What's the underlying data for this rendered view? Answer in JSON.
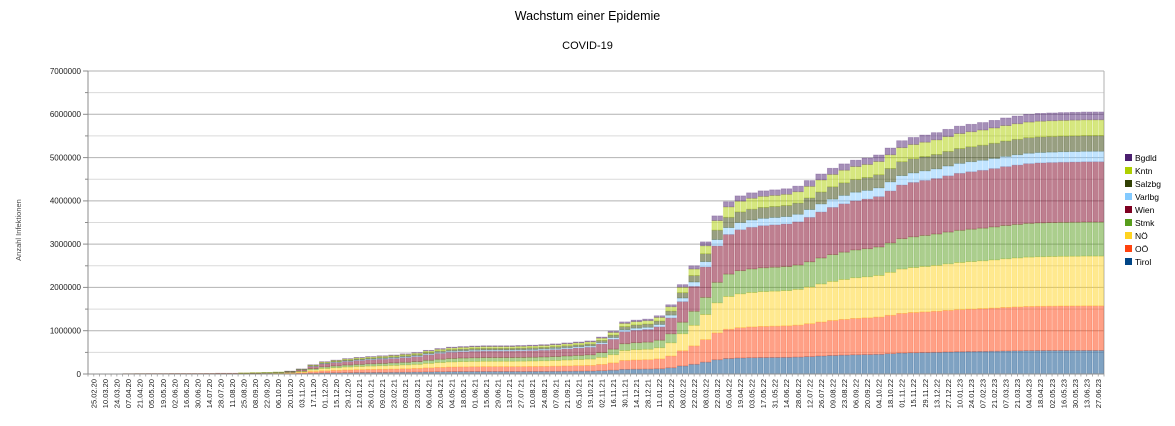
{
  "page": {
    "background_color": "#ffffff"
  },
  "header": {
    "title": "Wachstum einer Epidemie",
    "subtitle": "COVID-19"
  },
  "y_axis": {
    "title": "Anzahl Infektionen",
    "tick_labels": [
      "0",
      "1000000",
      "2000000",
      "3000000",
      "4000000",
      "5000000",
      "6000000",
      "7000000"
    ]
  },
  "chart_data": {
    "type": "bar",
    "stacked": true,
    "title": "Wachstum einer Epidemie",
    "subtitle": "COVID-19",
    "xlabel": "",
    "ylabel": "Anzahl Infektionen",
    "ylim": [
      0,
      7000000
    ],
    "y_major_step": 1000000,
    "y_minor_step": 500000,
    "grid": true,
    "legend_position": "right",
    "bar_fill_opacity": 0.5,
    "stack_order": "bottom-to-top",
    "legend_order_top_to_bottom": [
      "Bgdld",
      "Kntn",
      "Salzbg",
      "Varlbg",
      "Wien",
      "Stmk",
      "NÖ",
      "OÖ",
      "Tirol"
    ],
    "categories": [
      "25.02.20",
      "10.03.20",
      "24.03.20",
      "07.04.20",
      "21.04.20",
      "05.05.20",
      "19.05.20",
      "02.06.20",
      "16.06.20",
      "30.06.20",
      "14.07.20",
      "28.07.20",
      "11.08.20",
      "25.08.20",
      "08.09.20",
      "22.09.20",
      "06.10.20",
      "20.10.20",
      "03.11.20",
      "17.11.20",
      "01.12.20",
      "15.12.20",
      "29.12.20",
      "12.01.21",
      "26.01.21",
      "09.02.21",
      "23.02.21",
      "09.03.21",
      "23.03.21",
      "06.04.21",
      "20.04.21",
      "04.05.21",
      "18.05.21",
      "01.06.21",
      "15.06.21",
      "29.06.21",
      "13.07.21",
      "27.07.21",
      "10.08.21",
      "24.08.21",
      "07.09.21",
      "21.09.21",
      "05.10.21",
      "19.10.21",
      "02.11.21",
      "16.11.21",
      "30.11.21",
      "14.12.21",
      "28.12.21",
      "11.01.22",
      "25.01.22",
      "08.02.22",
      "22.02.22",
      "08.03.22",
      "22.03.22",
      "05.04.22",
      "19.04.22",
      "03.05.22",
      "17.05.22",
      "31.05.22",
      "14.06.22",
      "28.06.22",
      "12.07.22",
      "26.07.22",
      "09.08.22",
      "23.08.22",
      "06.09.22",
      "20.09.22",
      "04.10.22",
      "18.10.22",
      "01.11.22",
      "15.11.22",
      "29.11.22",
      "13.12.22",
      "27.12.22",
      "10.01.23",
      "24.01.23",
      "07.02.23",
      "21.02.23",
      "07.03.23",
      "21.03.23",
      "04.04.23",
      "18.04.23",
      "02.05.23",
      "16.05.23",
      "30.05.23",
      "13.06.23",
      "27.06.23"
    ],
    "series": [
      {
        "name": "Tirol",
        "color": "#004586",
        "values": [
          0,
          0,
          0,
          1000,
          1000,
          1000,
          1000,
          2000,
          2000,
          2000,
          2000,
          2000,
          2000,
          2000,
          3000,
          3000,
          4000,
          6000,
          11000,
          19000,
          26000,
          29000,
          32000,
          35000,
          36000,
          38000,
          40000,
          42000,
          45000,
          49000,
          53000,
          56000,
          57000,
          58000,
          59000,
          59000,
          59000,
          59000,
          60000,
          61000,
          63000,
          65000,
          67000,
          69000,
          77000,
          89000,
          108000,
          112000,
          114000,
          121000,
          144000,
          186000,
          225000,
          275000,
          329000,
          358000,
          370000,
          377000,
          381000,
          383000,
          385000,
          391000,
          402000,
          416000,
          428000,
          437000,
          445000,
          449000,
          455000,
          470000,
          485000,
          492000,
          497000,
          502000,
          509000,
          515000,
          519000,
          523000,
          527000,
          532000,
          536000,
          540000,
          542000,
          543000,
          544000,
          544000,
          545000,
          545000
        ]
      },
      {
        "name": "OÖ",
        "color": "#FF420E",
        "values": [
          0,
          0,
          1000,
          2000,
          3000,
          3000,
          3000,
          3000,
          3000,
          3000,
          3000,
          4000,
          4000,
          4000,
          5000,
          6000,
          8000,
          11000,
          20000,
          36000,
          48000,
          55000,
          61000,
          65000,
          69000,
          72000,
          75000,
          79000,
          84000,
          93000,
          100000,
          105000,
          108000,
          110000,
          111000,
          111000,
          111000,
          112000,
          113000,
          115000,
          118000,
          122000,
          126000,
          130000,
          145000,
          168000,
          205000,
          212000,
          216000,
          229000,
          272000,
          351000,
          425000,
          519000,
          621000,
          677000,
          700000,
          711000,
          719000,
          723000,
          728000,
          738000,
          760000,
          785000,
          808000,
          825000,
          840000,
          848000,
          860000,
          887000,
          916000,
          929000,
          938000,
          948000,
          961000,
          973000,
          981000,
          988000,
          996000,
          1006000,
          1013000,
          1020000,
          1023000,
          1025000,
          1027000,
          1028000,
          1029000,
          1029000
        ]
      },
      {
        "name": "NÖ",
        "color": "#FFD320",
        "values": [
          0,
          0,
          1000,
          2000,
          3000,
          3000,
          3000,
          3000,
          3000,
          3000,
          4000,
          4000,
          4000,
          5000,
          6000,
          7000,
          9000,
          13000,
          22000,
          41000,
          54000,
          61000,
          68000,
          73000,
          77000,
          80000,
          84000,
          89000,
          94000,
          104000,
          112000,
          118000,
          121000,
          123000,
          124000,
          124000,
          124000,
          125000,
          127000,
          129000,
          132000,
          136000,
          141000,
          145000,
          162000,
          188000,
          229000,
          237000,
          241000,
          256000,
          304000,
          392000,
          475000,
          580000,
          694000,
          756000,
          782000,
          795000,
          804000,
          808000,
          813000,
          825000,
          849000,
          878000,
          903000,
          922000,
          939000,
          948000,
          961000,
          992000,
          1024000,
          1038000,
          1049000,
          1059000,
          1074000,
          1088000,
          1096000,
          1104000,
          1113000,
          1124000,
          1132000,
          1140000,
          1144000,
          1146000,
          1148000,
          1149000,
          1150000,
          1150000
        ]
      },
      {
        "name": "Stmk",
        "color": "#579D1C",
        "values": [
          0,
          0,
          1000,
          2000,
          2000,
          2000,
          2000,
          2000,
          2000,
          2000,
          2000,
          3000,
          3000,
          3000,
          4000,
          5000,
          6000,
          9000,
          15000,
          28000,
          37000,
          42000,
          46000,
          50000,
          53000,
          55000,
          57000,
          61000,
          64000,
          71000,
          77000,
          81000,
          83000,
          84000,
          85000,
          85000,
          85000,
          86000,
          87000,
          88000,
          90000,
          93000,
          96000,
          99000,
          111000,
          129000,
          157000,
          162000,
          165000,
          175000,
          208000,
          268000,
          325000,
          397000,
          475000,
          517000,
          535000,
          544000,
          550000,
          553000,
          556000,
          564000,
          581000,
          601000,
          618000,
          631000,
          642000,
          649000,
          658000,
          679000,
          701000,
          710000,
          718000,
          725000,
          735000,
          744000,
          750000,
          755000,
          762000,
          769000,
          775000,
          780000,
          783000,
          784000,
          785000,
          786000,
          787000,
          787000
        ]
      },
      {
        "name": "Wien",
        "color": "#7E0021",
        "values": [
          0,
          0,
          1000,
          3000,
          3000,
          4000,
          4000,
          4000,
          4000,
          4000,
          4000,
          5000,
          5000,
          6000,
          7000,
          9000,
          11000,
          15000,
          27000,
          49000,
          66000,
          74000,
          82000,
          88000,
          93000,
          97000,
          101000,
          107000,
          114000,
          126000,
          135000,
          143000,
          146000,
          149000,
          150000,
          150000,
          150000,
          152000,
          153000,
          156000,
          160000,
          165000,
          170000,
          175000,
          197000,
          228000,
          277000,
          286000,
          292000,
          309000,
          368000,
          475000,
          575000,
          702000,
          840000,
          915000,
          946000,
          963000,
          973000,
          979000,
          984000,
          998000,
          1028000,
          1063000,
          1093000,
          1117000,
          1136000,
          1148000,
          1164000,
          1201000,
          1240000,
          1257000,
          1270000,
          1282000,
          1300000,
          1317000,
          1327000,
          1336000,
          1348000,
          1360000,
          1371000,
          1380000,
          1385000,
          1387000,
          1389000,
          1390000,
          1392000,
          1393000
        ]
      },
      {
        "name": "Varlbg",
        "color": "#83CAFF",
        "values": [
          0,
          0,
          0,
          1000,
          1000,
          1000,
          1000,
          1000,
          1000,
          1000,
          1000,
          1000,
          1000,
          1000,
          1000,
          2000,
          2000,
          3000,
          5000,
          9000,
          11000,
          13000,
          14000,
          15000,
          16000,
          17000,
          18000,
          19000,
          20000,
          22000,
          24000,
          25000,
          25000,
          26000,
          26000,
          26000,
          26000,
          26000,
          27000,
          27000,
          28000,
          29000,
          30000,
          31000,
          34000,
          40000,
          48000,
          50000,
          51000,
          54000,
          64000,
          83000,
          100000,
          122000,
          146000,
          159000,
          165000,
          167000,
          169000,
          170000,
          171000,
          174000,
          179000,
          185000,
          190000,
          194000,
          198000,
          200000,
          202000,
          209000,
          216000,
          219000,
          221000,
          223000,
          226000,
          229000,
          231000,
          232000,
          234000,
          237000,
          238000,
          240000,
          241000,
          241000,
          242000,
          242000,
          242000,
          242000
        ]
      },
      {
        "name": "Salzbg",
        "color": "#314004",
        "values": [
          0,
          0,
          0,
          1000,
          1000,
          1000,
          1000,
          1000,
          1000,
          1000,
          1000,
          1000,
          1000,
          2000,
          2000,
          2000,
          3000,
          4000,
          7000,
          13000,
          17000,
          19000,
          21000,
          23000,
          24000,
          25000,
          26000,
          28000,
          30000,
          33000,
          35000,
          37000,
          38000,
          39000,
          39000,
          39000,
          39000,
          40000,
          40000,
          41000,
          42000,
          43000,
          44000,
          46000,
          51000,
          59000,
          72000,
          75000,
          76000,
          81000,
          96000,
          124000,
          150000,
          183000,
          219000,
          239000,
          247000,
          251000,
          254000,
          255000,
          257000,
          260000,
          268000,
          277000,
          285000,
          291000,
          296000,
          299000,
          304000,
          313000,
          323000,
          328000,
          331000,
          335000,
          339000,
          344000,
          346000,
          349000,
          352000,
          355000,
          358000,
          360000,
          361000,
          362000,
          362000,
          363000,
          363000,
          363000
        ]
      },
      {
        "name": "Kntn",
        "color": "#AECF00",
        "values": [
          0,
          0,
          0,
          1000,
          1000,
          1000,
          1000,
          1000,
          1000,
          1000,
          1000,
          1000,
          1000,
          2000,
          2000,
          2000,
          3000,
          4000,
          7000,
          13000,
          17000,
          19000,
          21000,
          23000,
          24000,
          25000,
          26000,
          28000,
          30000,
          33000,
          35000,
          37000,
          38000,
          39000,
          39000,
          39000,
          39000,
          40000,
          40000,
          41000,
          42000,
          43000,
          44000,
          46000,
          51000,
          59000,
          72000,
          75000,
          76000,
          81000,
          96000,
          124000,
          150000,
          183000,
          219000,
          239000,
          247000,
          251000,
          254000,
          255000,
          257000,
          260000,
          268000,
          277000,
          285000,
          291000,
          296000,
          299000,
          304000,
          313000,
          323000,
          328000,
          331000,
          335000,
          339000,
          344000,
          346000,
          349000,
          352000,
          355000,
          358000,
          360000,
          361000,
          362000,
          362000,
          363000,
          363000,
          363000
        ]
      },
      {
        "name": "Bgdld",
        "color": "#4B1F6F",
        "values": [
          0,
          0,
          0,
          0,
          0,
          0,
          0,
          1000,
          1000,
          1000,
          1000,
          1000,
          1000,
          1000,
          1000,
          1000,
          1000,
          2000,
          4000,
          6000,
          9000,
          10000,
          11000,
          12000,
          12000,
          13000,
          13000,
          14000,
          15000,
          16000,
          18000,
          19000,
          19000,
          19000,
          20000,
          20000,
          20000,
          20000,
          20000,
          20000,
          21000,
          22000,
          22000,
          23000,
          26000,
          30000,
          36000,
          37000,
          38000,
          40000,
          48000,
          62000,
          75000,
          92000,
          110000,
          119000,
          123000,
          126000,
          127000,
          128000,
          128000,
          130000,
          134000,
          139000,
          143000,
          146000,
          148000,
          150000,
          152000,
          157000,
          162000,
          164000,
          166000,
          167000,
          170000,
          172000,
          173000,
          174000,
          176000,
          177000,
          179000,
          180000,
          181000,
          181000,
          181000,
          181000,
          182000,
          182000
        ]
      }
    ]
  }
}
